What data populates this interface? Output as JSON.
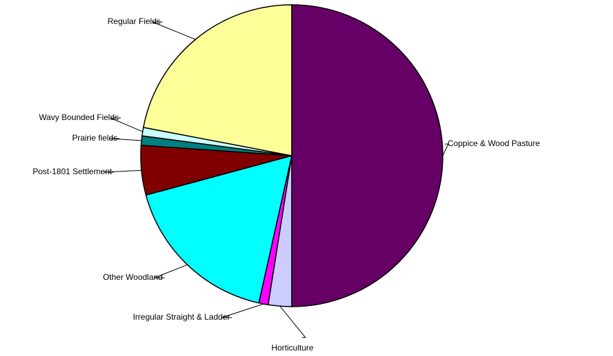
{
  "chart_data": {
    "type": "pie",
    "categories": [
      "Coppice & Wood Pasture",
      "Horticulture",
      "Irregular Straight & Ladder",
      "Other Woodland",
      "Post-1801 Settlement",
      "Prairie fields",
      "Wavy Bounded Fields",
      "Regular Fields"
    ],
    "values": [
      50,
      2.5,
      1,
      17.3,
      5.3,
      1,
      0.9,
      22
    ],
    "colors": [
      "#660066",
      "#ccccff",
      "#ff00ff",
      "#00ffff",
      "#800000",
      "#008080",
      "#ccffff",
      "#ffff99"
    ]
  }
}
